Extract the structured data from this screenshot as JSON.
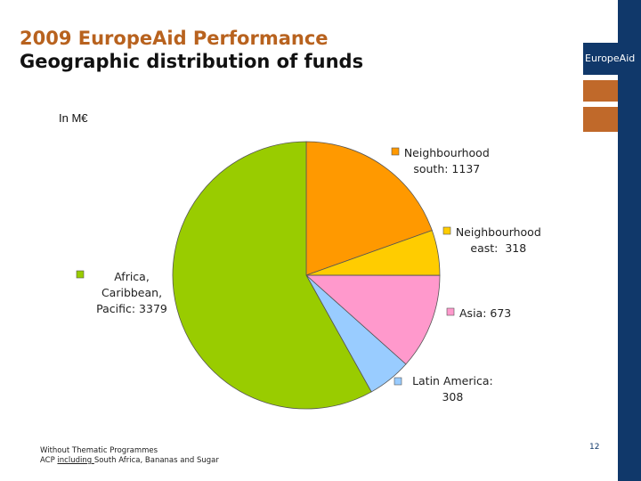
{
  "title": {
    "line1": "2009 EuropeAid Performance",
    "line2": "Geographic distribution of funds"
  },
  "brand": "EuropeAid",
  "unit_label": "In M€",
  "footnote": {
    "line1": "Without Thematic Programmes",
    "line2_prefix": "ACP ",
    "line2_underlined": "including ",
    "line2_suffix": "South Africa, Bananas and Sugar"
  },
  "page_number": "12",
  "colors": {
    "title_accent": "#b8621e",
    "brand_blue": "#10386a",
    "brand_orange": "#c0692a"
  },
  "chart_data": {
    "type": "pie",
    "title": "",
    "unit": "In M€",
    "slices": [
      {
        "name": "Neighbourhood south",
        "value": 1137,
        "label_lines": [
          "Neighbourhood",
          "south: 1137"
        ],
        "color": "#ff9900"
      },
      {
        "name": "Neighbourhood east",
        "value": 318,
        "label_lines": [
          "Neighbourhood",
          "east:  318"
        ],
        "color": "#ffcc00"
      },
      {
        "name": "Asia",
        "value": 673,
        "label_lines": [
          "Asia: 673"
        ],
        "color": "#ff99cc"
      },
      {
        "name": "Latin America",
        "value": 308,
        "label_lines": [
          "Latin America:",
          "308"
        ],
        "color": "#99ccff"
      },
      {
        "name": "Africa, Caribbean, Pacific",
        "value": 3379,
        "label_lines": [
          "Africa,",
          "Caribbean,",
          "Pacific: 3379"
        ],
        "color": "#99cc00"
      }
    ]
  }
}
